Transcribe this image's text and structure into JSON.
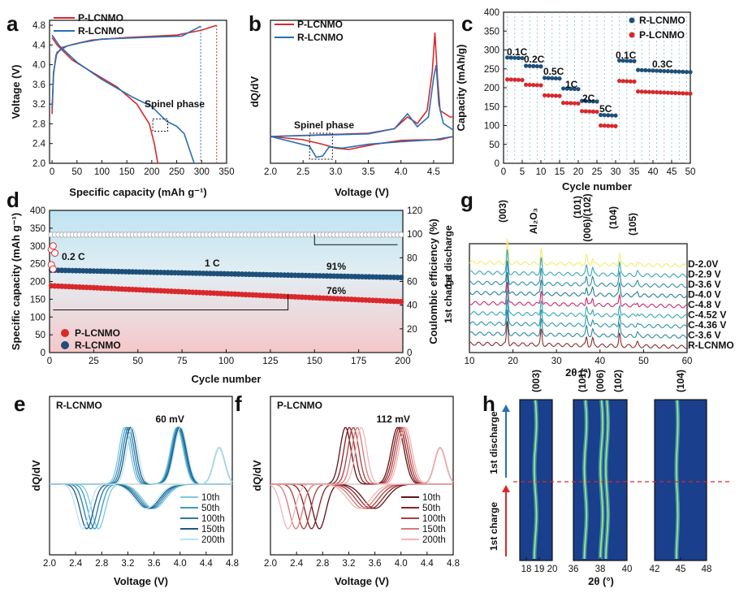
{
  "figure": {
    "panel_labels": [
      "a",
      "b",
      "c",
      "d",
      "e",
      "f",
      "g",
      "h"
    ]
  },
  "colors": {
    "p": "#d9282b",
    "r": "#2a6db5",
    "r_dark": "#1d4f7a",
    "cbg_top": "#bfe3f2",
    "cbg_bot": "#f5c7c9"
  },
  "chart_data": [
    {
      "id": "a",
      "type": "line",
      "xlabel": "Specific capacity (mAh g⁻¹)",
      "ylabel": "Voltage (V)",
      "xlim": [
        -5,
        350
      ],
      "ylim": [
        2.0,
        4.9
      ],
      "xticks": [
        0,
        50,
        100,
        150,
        200,
        250,
        300,
        350
      ],
      "yticks": [
        2.0,
        2.4,
        2.8,
        3.2,
        3.6,
        4.0,
        4.4,
        4.8
      ],
      "annotations": [
        "Spinel phase"
      ],
      "series": [
        {
          "name": "P-LCNMO",
          "color": "p",
          "charge": [
            [
              0,
              3.0
            ],
            [
              3,
              3.8
            ],
            [
              8,
              4.2
            ],
            [
              20,
              4.35
            ],
            [
              45,
              4.42
            ],
            [
              80,
              4.5
            ],
            [
              150,
              4.55
            ],
            [
              250,
              4.6
            ],
            [
              300,
              4.7
            ],
            [
              330,
              4.8
            ]
          ],
          "discharge": [
            [
              0,
              4.55
            ],
            [
              10,
              4.4
            ],
            [
              40,
              4.1
            ],
            [
              80,
              3.85
            ],
            [
              130,
              3.55
            ],
            [
              170,
              3.2
            ],
            [
              195,
              2.8
            ],
            [
              205,
              2.4
            ],
            [
              212,
              2.0
            ]
          ]
        },
        {
          "name": "R-LCNMO",
          "color": "r",
          "charge": [
            [
              0,
              3.1
            ],
            [
              3,
              3.85
            ],
            [
              10,
              4.25
            ],
            [
              30,
              4.38
            ],
            [
              60,
              4.45
            ],
            [
              100,
              4.52
            ],
            [
              180,
              4.55
            ],
            [
              260,
              4.58
            ],
            [
              298,
              4.78
            ]
          ],
          "discharge": [
            [
              0,
              4.6
            ],
            [
              15,
              4.38
            ],
            [
              50,
              4.05
            ],
            [
              100,
              3.7
            ],
            [
              160,
              3.35
            ],
            [
              200,
              3.15
            ],
            [
              230,
              2.85
            ],
            [
              250,
              2.75
            ],
            [
              265,
              2.6
            ],
            [
              275,
              2.3
            ],
            [
              285,
              2.0
            ]
          ]
        }
      ]
    },
    {
      "id": "b",
      "type": "line",
      "xlabel": "Voltage (V)",
      "ylabel": "dQ/dV",
      "xlim": [
        2.0,
        4.8
      ],
      "xticks": [
        2.0,
        2.5,
        3.0,
        3.5,
        4.0,
        4.5
      ],
      "annotations": [
        "Spinel phase"
      ],
      "series": [
        {
          "name": "P-LCNMO",
          "color": "p",
          "charge": [
            [
              2.0,
              0
            ],
            [
              3.5,
              0.05
            ],
            [
              3.9,
              0.12
            ],
            [
              4.1,
              0.3
            ],
            [
              4.25,
              0.2
            ],
            [
              4.4,
              0.4
            ],
            [
              4.48,
              1.0
            ],
            [
              4.52,
              1.6
            ],
            [
              4.56,
              0.9
            ],
            [
              4.6,
              0.4
            ],
            [
              4.75,
              0.3
            ],
            [
              4.8,
              0.3
            ]
          ],
          "discharge": [
            [
              4.8,
              0
            ],
            [
              4.6,
              -0.05
            ],
            [
              4.4,
              -0.05
            ],
            [
              4.0,
              -0.06
            ],
            [
              3.6,
              -0.12
            ],
            [
              3.2,
              -0.2
            ],
            [
              3.0,
              -0.18
            ],
            [
              2.8,
              -0.12
            ],
            [
              2.5,
              -0.05
            ],
            [
              2.0,
              0
            ]
          ]
        },
        {
          "name": "R-LCNMO",
          "color": "r",
          "charge": [
            [
              2.0,
              0
            ],
            [
              3.5,
              0.04
            ],
            [
              3.9,
              0.12
            ],
            [
              4.1,
              0.35
            ],
            [
              4.25,
              0.15
            ],
            [
              4.42,
              0.3
            ],
            [
              4.5,
              0.9
            ],
            [
              4.54,
              1.1
            ],
            [
              4.58,
              0.5
            ],
            [
              4.65,
              0.2
            ],
            [
              4.8,
              0.1
            ]
          ],
          "discharge": [
            [
              4.8,
              0
            ],
            [
              4.5,
              -0.05
            ],
            [
              4.0,
              -0.08
            ],
            [
              3.5,
              -0.12
            ],
            [
              3.1,
              -0.18
            ],
            [
              2.9,
              -0.16
            ],
            [
              2.8,
              -0.3
            ],
            [
              2.7,
              -0.32
            ],
            [
              2.6,
              -0.15
            ],
            [
              2.0,
              0
            ]
          ]
        }
      ]
    },
    {
      "id": "c",
      "type": "scatter",
      "xlabel": "Cycle number",
      "ylabel": "Capacity (mAh/g)",
      "xlim": [
        0,
        50
      ],
      "ylim": [
        0,
        400
      ],
      "xticks": [
        0,
        5,
        10,
        15,
        20,
        25,
        30,
        35,
        40,
        45,
        50
      ],
      "yticks": [
        0,
        50,
        100,
        150,
        200,
        250,
        300,
        350,
        400
      ],
      "rate_labels": [
        "0.1C",
        "0.2C",
        "0.5C",
        "1C",
        "2C",
        "5C",
        "0.1C",
        "0.3C"
      ],
      "segments": [
        [
          1,
          5
        ],
        [
          6,
          10
        ],
        [
          11,
          15
        ],
        [
          16,
          20
        ],
        [
          21,
          25
        ],
        [
          26,
          30
        ],
        [
          31,
          35
        ],
        [
          36,
          50
        ]
      ],
      "series": [
        {
          "name": "R-LCNMO",
          "color": "r_dark",
          "values": [
            280,
            258,
            226,
            198,
            165,
            128,
            272,
            247
          ]
        },
        {
          "name": "P-LCNMO",
          "color": "p",
          "values": [
            222,
            208,
            180,
            160,
            138,
            100,
            218,
            190
          ]
        }
      ]
    },
    {
      "id": "d",
      "type": "scatter",
      "xlabel": "Cycle number",
      "ylabel": "Specific capacity (mAh g⁻¹)",
      "y2label": "Coulombic efficiency (%)",
      "xlim": [
        0,
        200
      ],
      "ylim": [
        0,
        400
      ],
      "y2lim": [
        0,
        120
      ],
      "xticks": [
        0,
        25,
        50,
        75,
        100,
        125,
        150,
        175,
        200
      ],
      "yticks": [
        0,
        50,
        100,
        150,
        200,
        250,
        300,
        350,
        400
      ],
      "y2ticks": [
        0,
        20,
        40,
        60,
        80,
        100,
        120
      ],
      "annotations": [
        "0.2 C",
        "1 C",
        "91%",
        "76%"
      ],
      "series": [
        {
          "name": "P-LCNMO",
          "color": "p",
          "capacity_start": 188,
          "capacity_end": 143
        },
        {
          "name": "R-LCNMO",
          "color": "r_dark",
          "capacity_start": 232,
          "capacity_end": 211
        },
        {
          "name": "Coulombic efficiency",
          "color": "p",
          "value": 99.5
        }
      ]
    },
    {
      "id": "e",
      "type": "line",
      "title": "R-LCNMO",
      "xlabel": "Voltage (V)",
      "ylabel": "dQ/dV",
      "xlim": [
        2.0,
        4.8
      ],
      "xticks": [
        2.0,
        2.4,
        2.8,
        3.2,
        3.6,
        4.0,
        4.4,
        4.8
      ],
      "annotations": [
        "60 mV"
      ],
      "legend": [
        "10th",
        "50th",
        "100th",
        "150th",
        "200th"
      ],
      "cycle_colors": [
        "#7ec8dc",
        "#3a9cc4",
        "#2a7aa8",
        "#1d5a86",
        "#b9e4ef"
      ]
    },
    {
      "id": "f",
      "type": "line",
      "title": "P-LCNMO",
      "xlabel": "Voltage (V)",
      "ylabel": "dQ/dV",
      "xlim": [
        2.0,
        4.8
      ],
      "xticks": [
        2.0,
        2.4,
        2.8,
        3.2,
        3.6,
        4.0,
        4.4,
        4.8
      ],
      "annotations": [
        "112 mV"
      ],
      "legend": [
        "10th",
        "50th",
        "100th",
        "150th",
        "200th"
      ],
      "cycle_colors": [
        "#5e1416",
        "#8c2224",
        "#b13c3e",
        "#d9787a",
        "#f2b5b6"
      ]
    },
    {
      "id": "g",
      "type": "line",
      "xlabel": "2θ (°)",
      "xlim": [
        10,
        60
      ],
      "xticks": [
        10,
        20,
        30,
        40,
        50,
        60
      ],
      "peak_labels": [
        "(003)",
        "Al₂O₃",
        "(101)",
        "(006)/(102)",
        "(104)",
        "(105)"
      ],
      "peak_positions": [
        18.7,
        26.5,
        36.9,
        38.3,
        44.5,
        48.6
      ],
      "side_labels": [
        "1st charge",
        "1st discharge"
      ],
      "patterns": [
        {
          "label": "D-2.0V",
          "color": "#f4ec68"
        },
        {
          "label": "D-2.9 V",
          "color": "#3aa6b8"
        },
        {
          "label": "D-3.6 V",
          "color": "#2e8fa5"
        },
        {
          "label": "D-4.0 V",
          "color": "#267f96"
        },
        {
          "label": "C-4.8 V",
          "color": "#cd2a69"
        },
        {
          "label": "C-4.52 V",
          "color": "#34a8b5"
        },
        {
          "label": "C-4.36 V",
          "color": "#2b97ab"
        },
        {
          "label": "C-3.6 V",
          "color": "#2b8aa2"
        },
        {
          "label": "R-LCNMO",
          "color": "#8c2b2b"
        }
      ]
    },
    {
      "id": "h",
      "type": "heatmap",
      "xlabel": "2θ (°)",
      "side_labels": [
        "1st charge",
        "1st discharge"
      ],
      "windows": [
        {
          "xlim": [
            17.5,
            20
          ],
          "xticks": [
            18,
            19,
            20
          ],
          "labels": [
            "(003)"
          ],
          "peaks": [
            18.7
          ]
        },
        {
          "xlim": [
            36,
            40
          ],
          "xticks": [
            36,
            38,
            40
          ],
          "labels": [
            "(101)",
            "(006)",
            "(102)"
          ],
          "peaks": [
            36.9,
            38.1,
            38.5
          ]
        },
        {
          "xlim": [
            42,
            48
          ],
          "xticks": [
            42,
            45,
            48
          ],
          "labels": [
            "(104)"
          ],
          "peaks": [
            44.6
          ]
        }
      ]
    }
  ]
}
